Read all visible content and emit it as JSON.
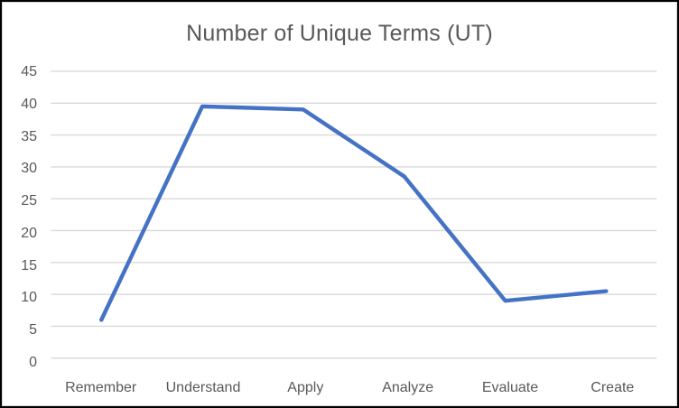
{
  "chart_data": {
    "type": "line",
    "title": "Number of Unique Terms (UT)",
    "categories": [
      "Remember",
      "Understand",
      "Apply",
      "Analyze",
      "Evaluate",
      "Create"
    ],
    "series": [
      {
        "name": "Number of Unique Terms (UT)",
        "values": [
          6,
          39.5,
          39,
          28.5,
          9,
          10.5
        ]
      }
    ],
    "xlabel": "",
    "ylabel": "",
    "ylim": [
      0,
      45
    ],
    "ytick_step": 5,
    "yticks": [
      0,
      5,
      10,
      15,
      20,
      25,
      30,
      35,
      40,
      45
    ],
    "grid": true,
    "legend_position": "none",
    "colors": {
      "line": "#4472C4",
      "gridline": "#D9D9D9",
      "title_text": "#595959",
      "axis_text": "#595959",
      "background": "#FFFFFF",
      "chart_border": "#D9D9D9",
      "outer_frame": "#000000"
    }
  }
}
